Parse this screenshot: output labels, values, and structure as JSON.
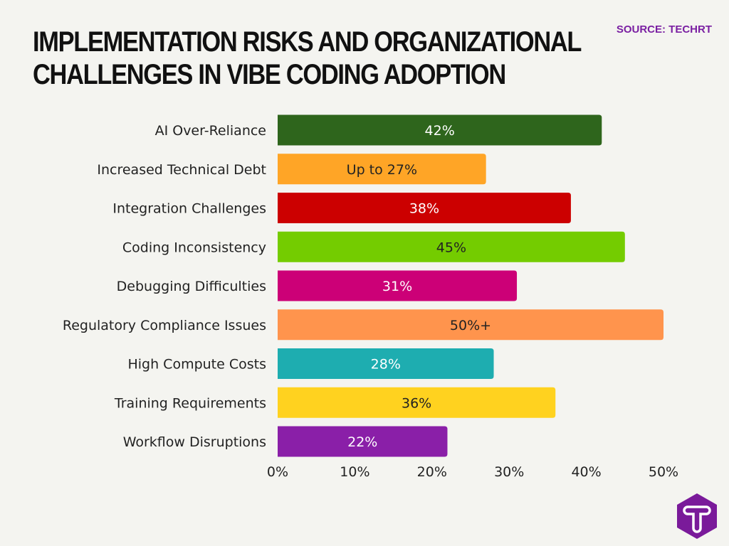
{
  "title_line1": "IMPLEMENTATION RISKS AND ORGANIZATIONAL",
  "title_line2": "CHALLENGES IN VIBE CODING ADOPTION",
  "source": "SOURCE: TECHRT",
  "logo_letter": "T",
  "chart_data": {
    "type": "bar",
    "orientation": "horizontal",
    "title": "IMPLEMENTATION RISKS AND ORGANIZATIONAL CHALLENGES IN VIBE CODING ADOPTION",
    "categories": [
      "AI Over-Reliance",
      "Increased Technical Debt",
      "Integration Challenges",
      "Coding Inconsistency",
      "Debugging Difficulties",
      "Regulatory Compliance Issues",
      "High Compute Costs",
      "Training Requirements",
      "Workflow Disruptions"
    ],
    "values": [
      42,
      27,
      38,
      45,
      31,
      50,
      28,
      36,
      22
    ],
    "data_labels": [
      "42%",
      "Up to 27%",
      "38%",
      "45%",
      "31%",
      "50%+",
      "28%",
      "36%",
      "22%"
    ],
    "colors": [
      "#2e651c",
      "#ffa526",
      "#cc0000",
      "#74cc00",
      "#cc0077",
      "#ff944d",
      "#1eadb0",
      "#ffd21f",
      "#8a1fa8"
    ],
    "label_colors": [
      "#ffffff",
      "#222222",
      "#ffffff",
      "#222222",
      "#ffffff",
      "#222222",
      "#ffffff",
      "#222222",
      "#ffffff"
    ],
    "xlim": [
      0,
      50
    ],
    "xticks": [
      "0%",
      "10%",
      "20%",
      "30%",
      "40%",
      "50%"
    ],
    "grid": false,
    "xlabel": "",
    "ylabel": ""
  }
}
